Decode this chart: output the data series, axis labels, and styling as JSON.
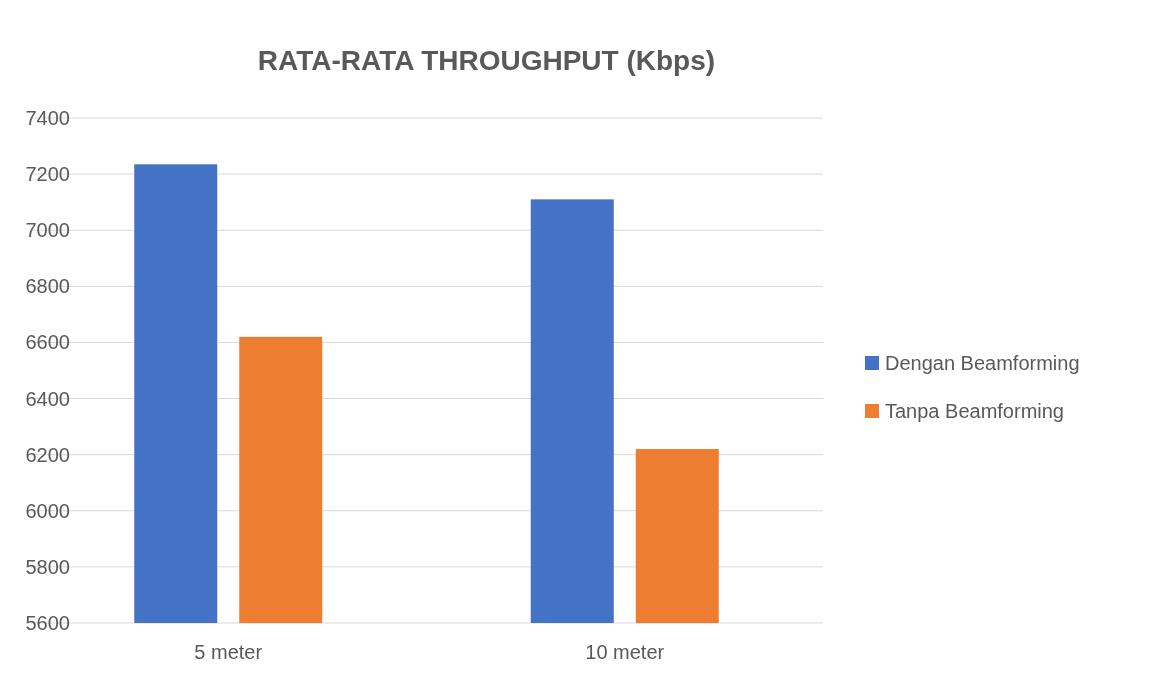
{
  "chart_data": {
    "type": "bar",
    "title": "RATA-RATA THROUGHPUT (Kbps)",
    "categories": [
      "5 meter",
      "10 meter"
    ],
    "series": [
      {
        "name": "Dengan Beamforming",
        "color": "#4472c4",
        "values": [
          7235,
          7110
        ]
      },
      {
        "name": "Tanpa Beamforming",
        "color": "#ed7d31",
        "values": [
          6620,
          6220
        ]
      }
    ],
    "ylim": [
      5600,
      7400
    ],
    "yticks": [
      5600,
      5800,
      6000,
      6200,
      6400,
      6600,
      6800,
      7000,
      7200,
      7400
    ],
    "grid": "y",
    "legend": "right"
  }
}
